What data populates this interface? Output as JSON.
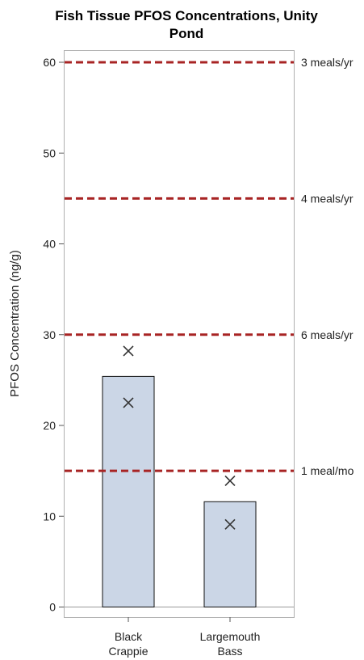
{
  "chart_data": {
    "type": "bar",
    "title_line1": "Fish Tissue PFOS Concentrations, Unity",
    "title_line2": "Pond",
    "title": "Fish Tissue PFOS Concentrations, Unity Pond",
    "xlabel": "",
    "ylabel": "PFOS Concentration (ng/g)",
    "ylim": [
      0,
      60
    ],
    "yticks": [
      0,
      10,
      20,
      30,
      40,
      50,
      60
    ],
    "grid": false,
    "categories": [
      {
        "line1": "Black",
        "line2": "Crappie"
      },
      {
        "line1": "Largemouth",
        "line2": "Bass"
      }
    ],
    "values": [
      25.4,
      11.6
    ],
    "points": [
      {
        "category": 0,
        "values": [
          28.2,
          22.5
        ]
      },
      {
        "category": 1,
        "values": [
          13.9,
          9.1
        ]
      }
    ],
    "reference_lines": [
      {
        "value": 60,
        "label": "3 meals/yr"
      },
      {
        "value": 45,
        "label": "4 meals/yr"
      },
      {
        "value": 30,
        "label": "6 meals/yr"
      },
      {
        "value": 15,
        "label": "1 meal/mo"
      }
    ],
    "colors": {
      "bar_fill": "#cbd6e6",
      "bar_stroke": "#111111",
      "reference_line": "#a82424",
      "marker": "#333333",
      "frame": "#b0b0b0"
    }
  }
}
